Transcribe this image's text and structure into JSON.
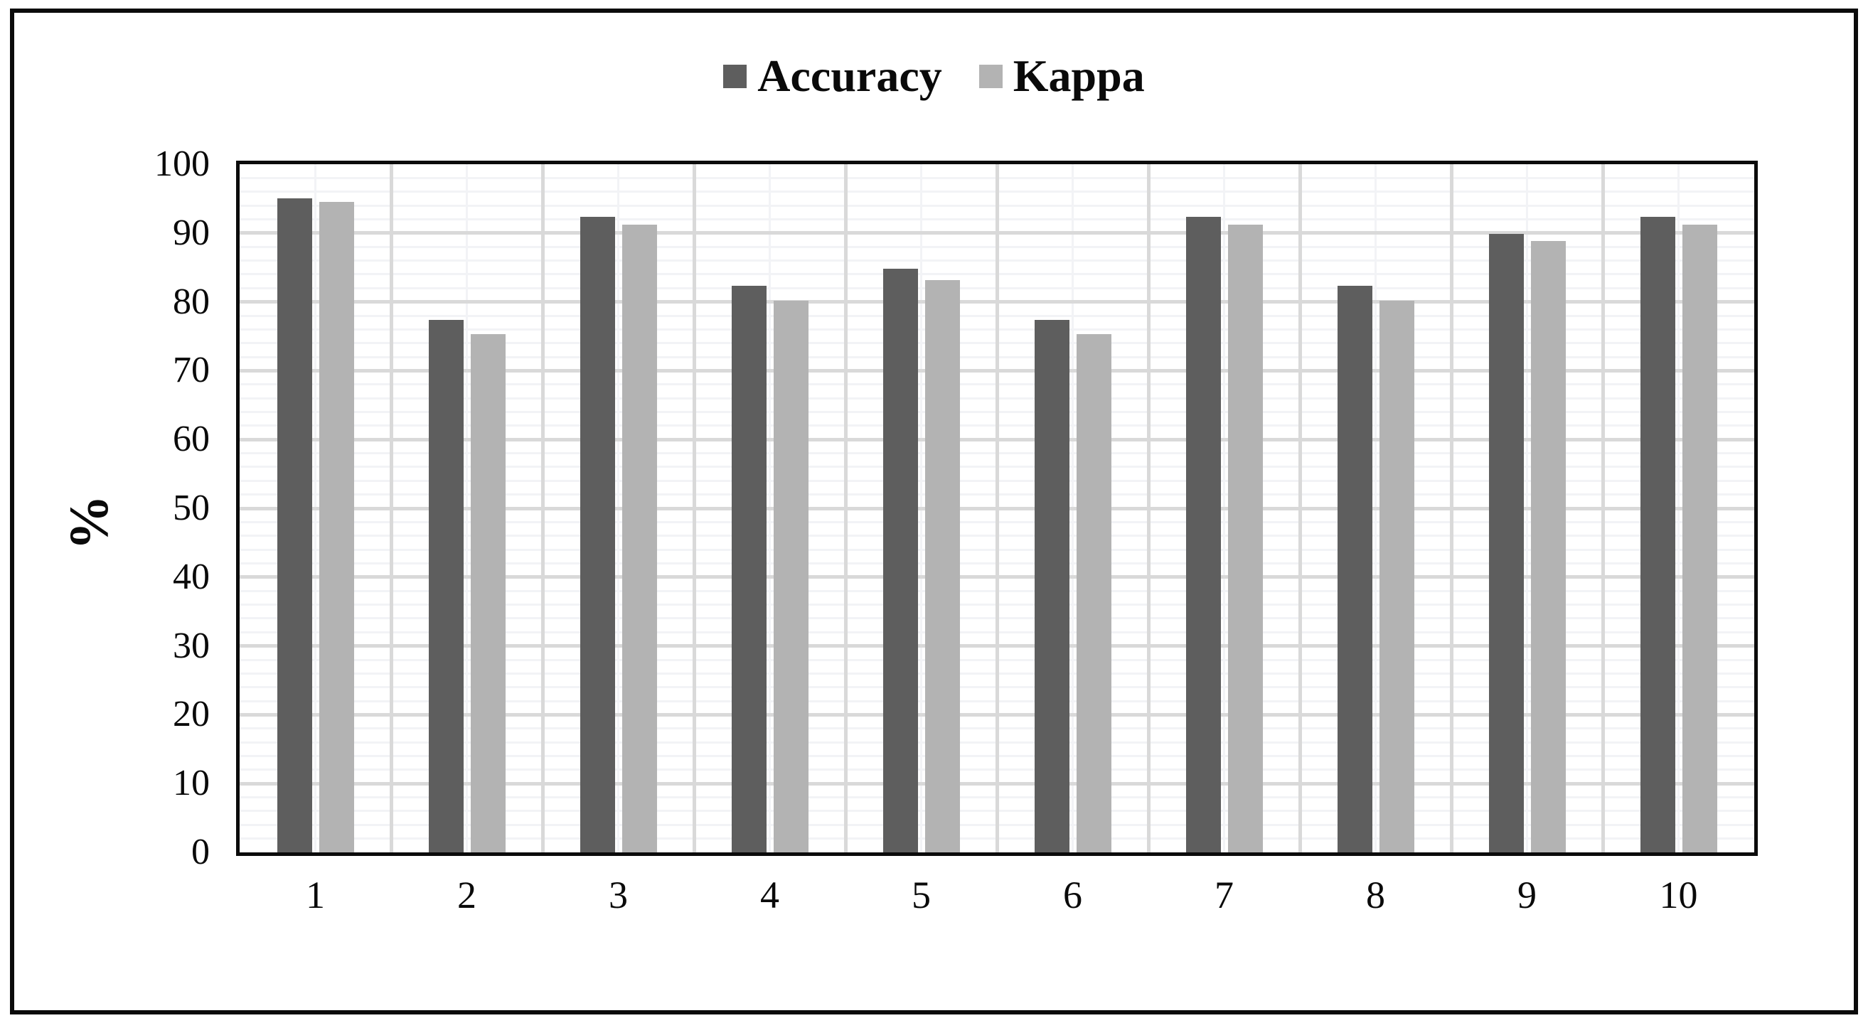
{
  "figure": {
    "background": "#ffffff",
    "outer_border_color": "#0b0b0b"
  },
  "legend": {
    "position": "top",
    "items": [
      {
        "label": "Accuracy",
        "color": "#5e5e5e"
      },
      {
        "label": "Kappa",
        "color": "#b3b3b3"
      }
    ]
  },
  "chart_data": {
    "type": "bar",
    "title": "",
    "categories": [
      "1",
      "2",
      "3",
      "4",
      "5",
      "6",
      "7",
      "8",
      "9",
      "10"
    ],
    "series": [
      {
        "name": "Accuracy",
        "color": "#5e5e5e",
        "values": [
          95.0,
          77.4,
          92.4,
          82.3,
          84.8,
          77.4,
          92.4,
          82.3,
          89.9,
          92.4
        ]
      },
      {
        "name": "Kappa",
        "color": "#b3b3b3",
        "values": [
          94.5,
          75.3,
          91.2,
          80.2,
          83.2,
          75.3,
          91.2,
          80.2,
          88.8,
          91.2
        ]
      }
    ],
    "xlabel": "",
    "ylabel": "%",
    "ylim": [
      0,
      100
    ],
    "ytick_step": 10,
    "yminor_step": 2,
    "grid": true,
    "legend_position": "top",
    "style": {
      "major_grid_color": "#d9d9d9",
      "minor_grid_color": "#f2f3f6",
      "axis_color": "#0b0b0b"
    }
  }
}
